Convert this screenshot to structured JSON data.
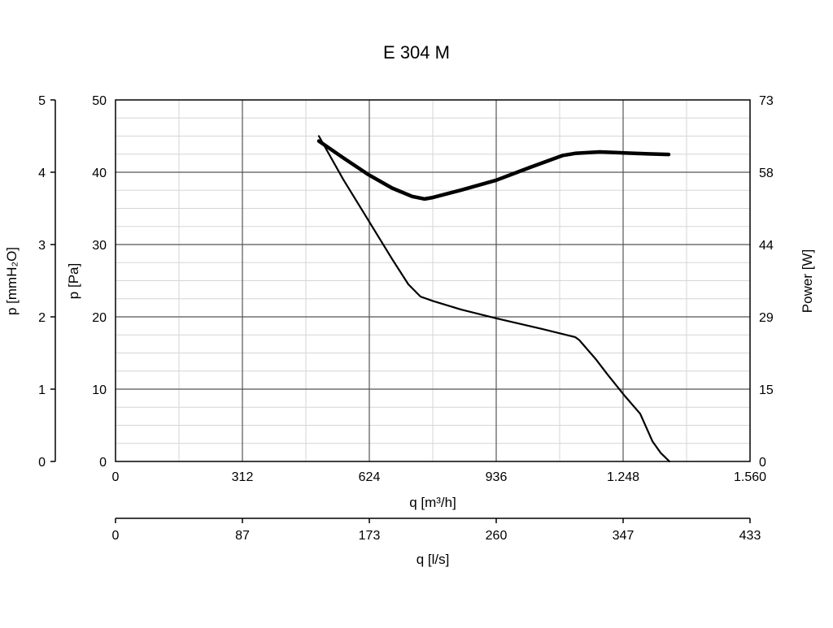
{
  "chart_data": {
    "type": "line",
    "title": "E 304 M",
    "xlabel": "q [m³/h]",
    "xlabel2": "q [l/s]",
    "ylabel": "p [Pa]",
    "ylabel2": "p [mmH₂O]",
    "ylabel_right": "Power [W]",
    "xlim": [
      0,
      1560
    ],
    "ylim": [
      0,
      50
    ],
    "ylim_right": [
      0,
      73
    ],
    "ylim_left2": [
      0,
      5
    ],
    "xlim2": [
      0,
      433
    ],
    "grid": true,
    "x_ticks": [
      "0",
      "312",
      "624",
      "936",
      "1.248",
      "1.560"
    ],
    "x2_ticks": [
      "0",
      "87",
      "173",
      "260",
      "347",
      "433"
    ],
    "y_ticks": [
      "0",
      "10",
      "20",
      "30",
      "40",
      "50"
    ],
    "y2_ticks": [
      "0",
      "1",
      "2",
      "3",
      "4",
      "5"
    ],
    "yright_ticks": [
      "0",
      "15",
      "29",
      "44",
      "58",
      "73"
    ],
    "series": [
      {
        "name": "",
        "axis": "left",
        "x": [
          500,
          560,
          620,
          680,
          720,
          750,
          760,
          780,
          850,
          936,
          1050,
          1130,
          1140,
          1180,
          1210,
          1250,
          1290,
          1320,
          1340,
          1362
        ],
        "y": [
          45,
          39,
          33.5,
          28,
          24.5,
          22.8,
          22.6,
          22.2,
          21,
          19.8,
          18.3,
          17.2,
          16.8,
          14.2,
          12,
          9.2,
          6.6,
          2.8,
          1.2,
          0
        ]
      },
      {
        "name": "",
        "axis": "right",
        "x": [
          500,
          560,
          620,
          680,
          730,
          760,
          780,
          850,
          936,
          1020,
          1100,
          1130,
          1190,
          1250,
          1310,
          1360
        ],
        "y": [
          64.7,
          61.3,
          58.0,
          55.2,
          53.5,
          53.0,
          53.3,
          54.8,
          56.8,
          59.4,
          61.8,
          62.2,
          62.5,
          62.3,
          62.1,
          62.0
        ]
      }
    ]
  }
}
